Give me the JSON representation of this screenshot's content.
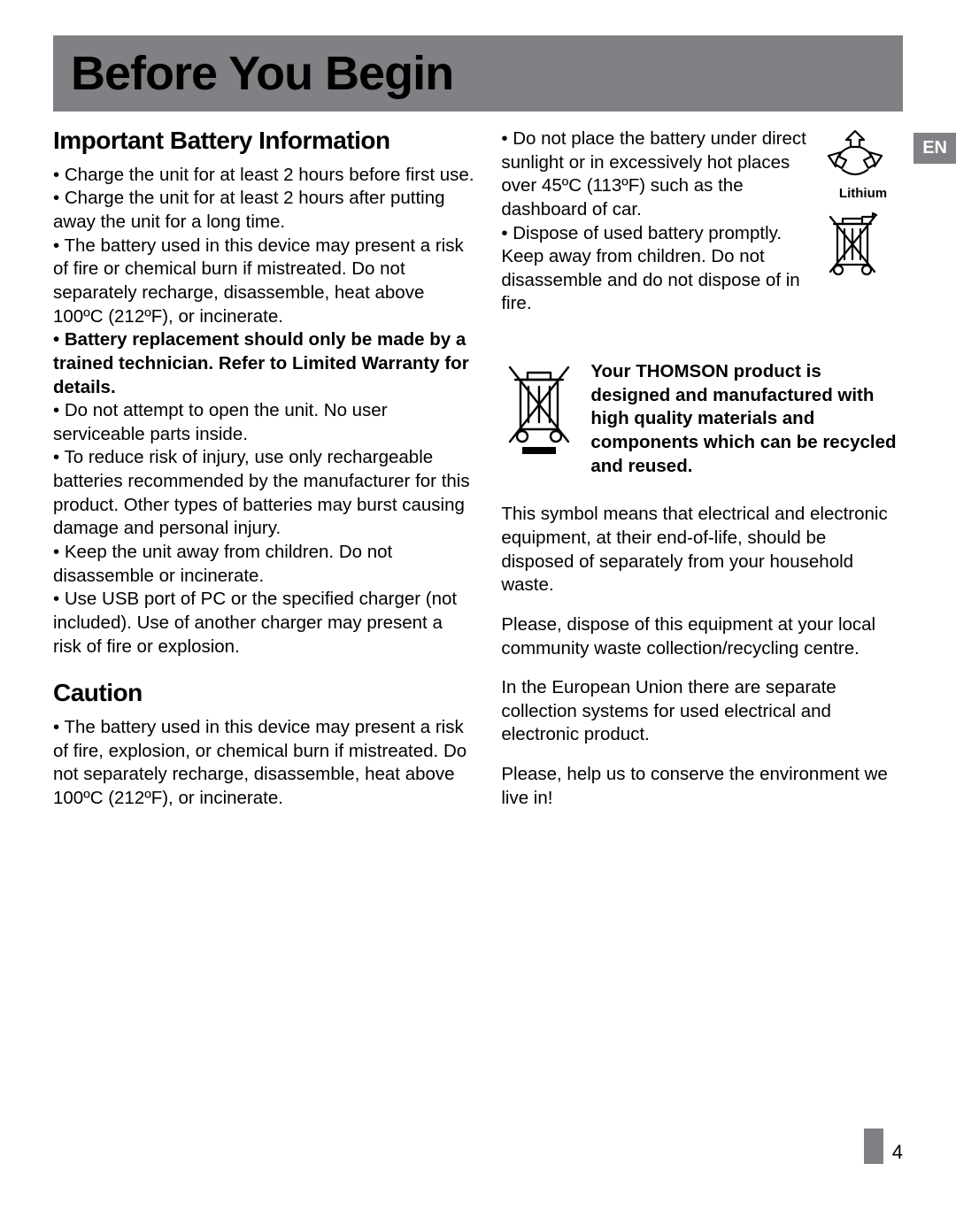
{
  "lang_tab": "EN",
  "page_number": "4",
  "title": "Before You Begin",
  "left": {
    "heading1": "Important Battery Information",
    "bullets1": [
      {
        "text": "Charge the unit for at least 2 hours before first use.",
        "bold": false
      },
      {
        "text": "Charge the unit for at least 2 hours after putting away the unit for a long time.",
        "bold": false
      },
      {
        "text": "The battery used in this device may present a risk of fire or chemical burn if mistreated.  Do not separately recharge, disassemble, heat above 100ºC (212ºF), or incinerate.",
        "bold": false
      },
      {
        "text": "Battery replacement should only be made by a trained technician.  Refer to Limited Warranty for details.",
        "bold": true
      },
      {
        "text": "Do not attempt to open the unit. No user serviceable parts inside.",
        "bold": false
      },
      {
        "text": "To reduce risk of injury, use only rechargeable batteries recommended by the manufacturer for this product. Other types of batteries may burst causing damage and personal injury.",
        "bold": false
      },
      {
        "text": "Keep the unit away from children. Do not disassemble or incinerate.",
        "bold": false
      },
      {
        "text": "Use USB port of PC or the specified charger (not included). Use of another charger may present a risk of fire or explosion.",
        "bold": false
      }
    ],
    "heading2": "Caution",
    "bullets2": [
      {
        "text": "The battery used in this device may present a risk of fire, explosion, or chemical burn if mistreated. Do not separately recharge, disassemble, heat above 100ºC (212ºF), or incinerate.",
        "bold": false
      }
    ]
  },
  "right": {
    "top_bullets": [
      {
        "text": "Do not place the battery under direct sunlight or in excessively hot places over 45ºC (113ºF) such as the dashboard of car.",
        "bold": false
      },
      {
        "text": "Dispose of used battery promptly. Keep away from children. Do not disassemble and do not dispose of in fire.",
        "bold": false
      }
    ],
    "lithium_label": "Lithium",
    "thomson_bold": "Your THOMSON product is designed and manufactured with high quality materials and components which can be recycled and reused.",
    "paras": [
      "This symbol means that electrical and electronic equipment, at their end-of-life, should be disposed of separately from your household waste.",
      "Please, dispose of this equipment at your local community waste collection/recycling centre.",
      "In the European Union there are separate collection systems for used electrical and electronic product.",
      "Please, help us to conserve the environment we live in!"
    ]
  }
}
